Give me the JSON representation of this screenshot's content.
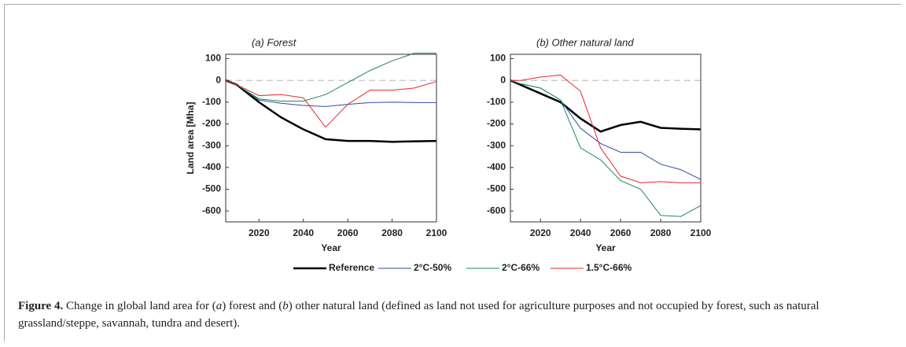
{
  "chart_data": [
    {
      "type": "line",
      "title": "(a) Forest",
      "y_label": "Land area [Mha]",
      "x_label": "Year",
      "x": [
        2005,
        2010,
        2020,
        2030,
        2040,
        2050,
        2060,
        2070,
        2080,
        2090,
        2100
      ],
      "xlim": [
        2005,
        2100
      ],
      "xticks": [
        2020,
        2040,
        2060,
        2080,
        2100
      ],
      "ylim": [
        -650,
        120
      ],
      "yticks": [
        100,
        0,
        -100,
        -200,
        -300,
        -400,
        -500,
        -600
      ],
      "zero_line": true,
      "series": [
        {
          "name": "Reference",
          "color": "#000000",
          "width": 2.5,
          "values": [
            0,
            -20,
            -100,
            -170,
            -225,
            -270,
            -278,
            -278,
            -282,
            -280,
            -278
          ]
        },
        {
          "name": "2°C-50%",
          "color": "#2b4f9e",
          "width": 1,
          "values": [
            0,
            -20,
            -90,
            -105,
            -115,
            -120,
            -110,
            -102,
            -100,
            -102,
            -102
          ]
        },
        {
          "name": "2°C-66%",
          "color": "#1a8a5a",
          "width": 1,
          "values": [
            0,
            -20,
            -85,
            -95,
            -95,
            -65,
            -10,
            45,
            90,
            125,
            125
          ]
        },
        {
          "name": "1.5°C-66%",
          "color": "#e8262a",
          "width": 1,
          "values": [
            0,
            -20,
            -70,
            -65,
            -80,
            -215,
            -110,
            -45,
            -45,
            -35,
            -5
          ]
        }
      ]
    },
    {
      "type": "line",
      "title": "(b) Other natural land",
      "x_label": "Year",
      "x": [
        2005,
        2010,
        2020,
        2030,
        2040,
        2050,
        2060,
        2070,
        2080,
        2090,
        2100
      ],
      "xlim": [
        2005,
        2100
      ],
      "xticks": [
        2020,
        2040,
        2060,
        2080,
        2100
      ],
      "ylim": [
        -650,
        120
      ],
      "yticks": [
        100,
        0,
        -100,
        -200,
        -300,
        -400,
        -500,
        -600
      ],
      "zero_line": true,
      "series": [
        {
          "color": "#000000",
          "width": 2.5,
          "values": [
            0,
            -20,
            -60,
            -100,
            -175,
            -235,
            -205,
            -190,
            -218,
            -222,
            -225
          ]
        },
        {
          "color": "#2b4f9e",
          "width": 1,
          "values": [
            0,
            -15,
            -35,
            -90,
            -220,
            -290,
            -330,
            -330,
            -385,
            -410,
            -455
          ]
        },
        {
          "color": "#1a8a5a",
          "width": 1,
          "values": [
            0,
            -15,
            -35,
            -90,
            -310,
            -365,
            -460,
            -500,
            -620,
            -625,
            -575
          ]
        },
        {
          "color": "#e8262a",
          "width": 1,
          "values": [
            0,
            0,
            15,
            25,
            -50,
            -310,
            -440,
            -470,
            -465,
            -470,
            -470
          ]
        }
      ]
    }
  ],
  "caption": {
    "label": "Figure 4.",
    "parts": [
      "Change in global land area for (",
      "a",
      ") forest and (",
      "b",
      ") other natural land (defined as land not used for agriculture purposes and not occupied by forest, such as natural grassland/steppe, savannah, tundra and desert)."
    ]
  }
}
